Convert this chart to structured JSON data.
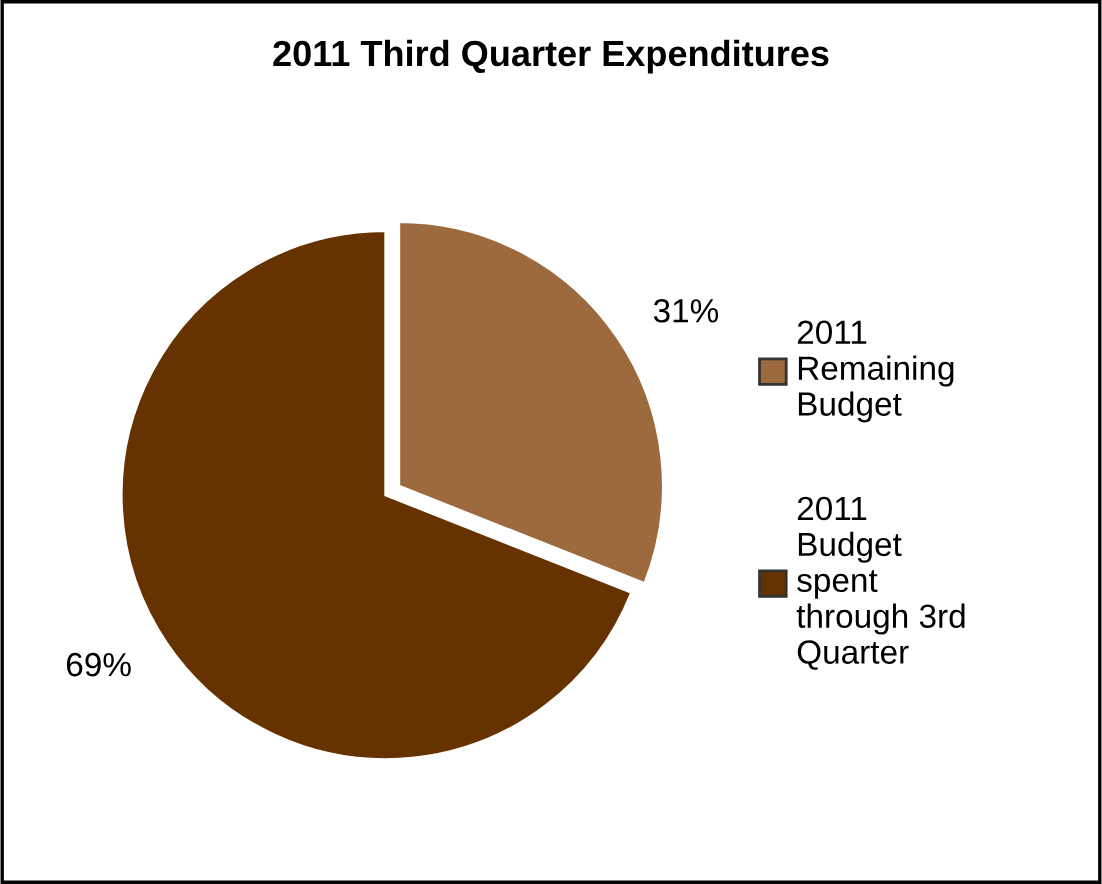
{
  "chart_data": {
    "type": "pie",
    "title": "2011 Third Quarter Expenditures",
    "categories": [
      "2011 Remaining Budget",
      "2011 Budget spent through 3rd Quarter"
    ],
    "values": [
      31,
      69
    ],
    "colors": [
      "#9c6a3c",
      "#663300"
    ],
    "value_labels": [
      "31%",
      "69%"
    ],
    "legend": "right"
  }
}
